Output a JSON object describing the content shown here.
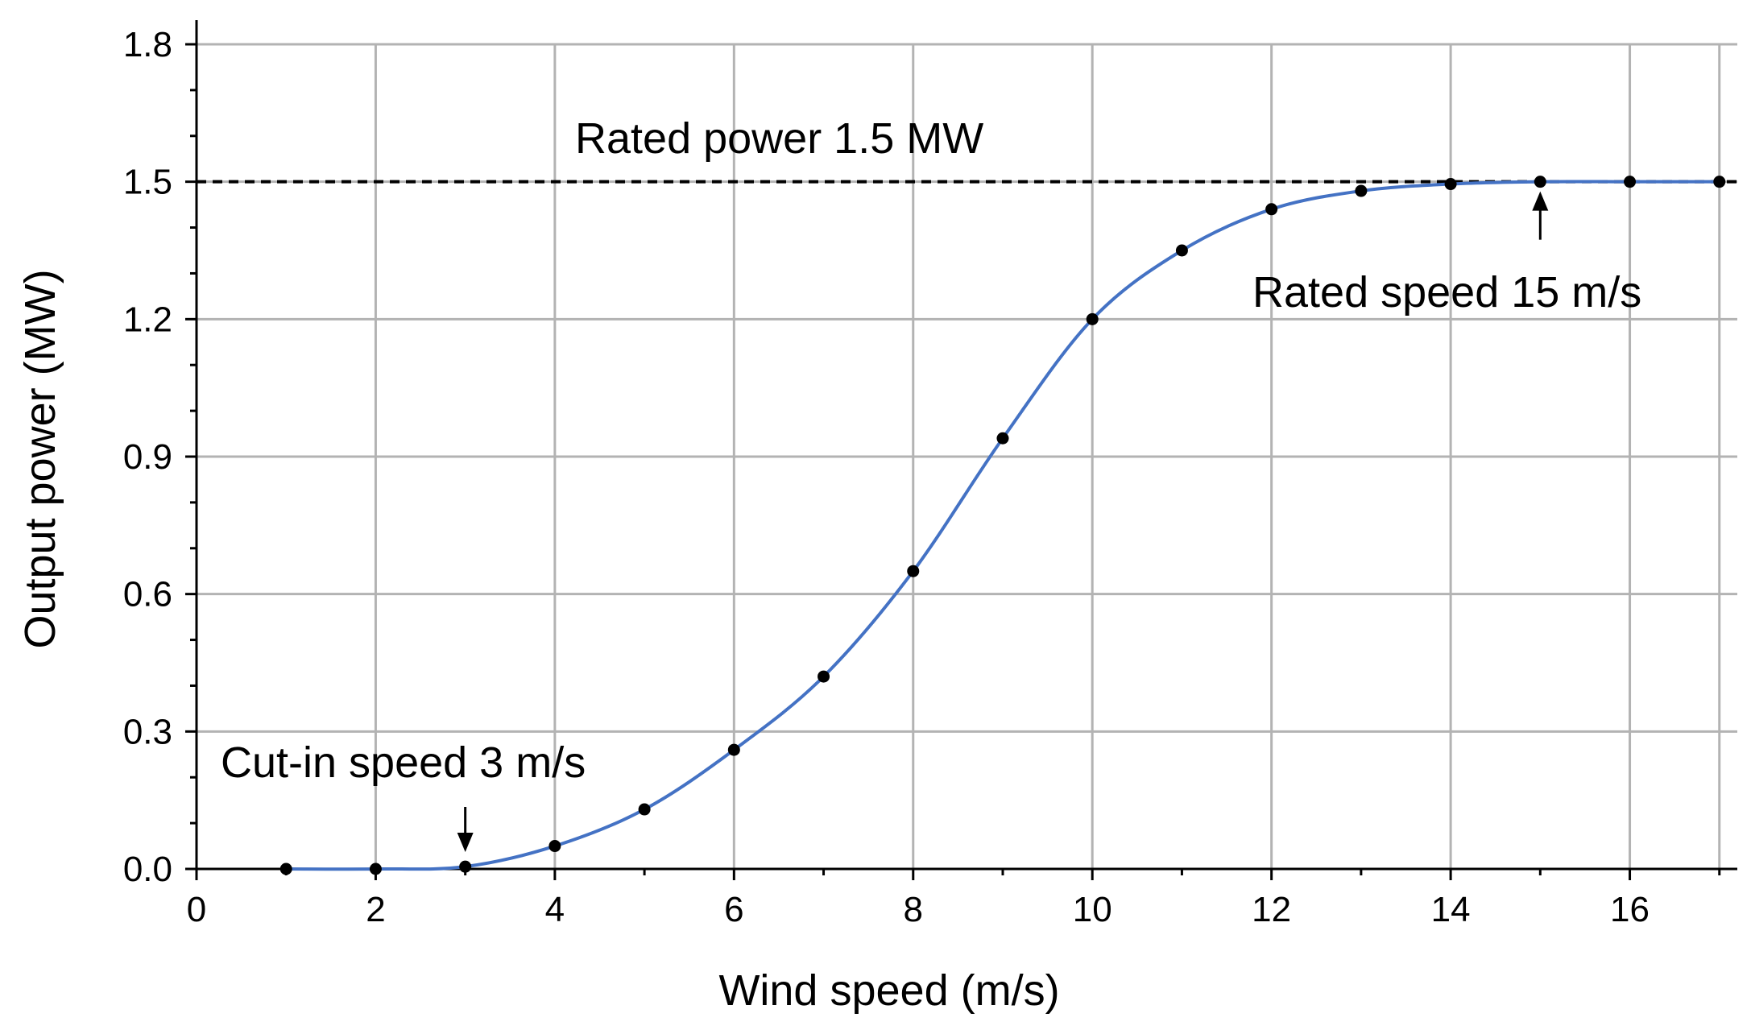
{
  "chart_data": {
    "type": "line",
    "title": "",
    "xlabel": "Wind speed (m/s)",
    "ylabel": "Output power (MW)",
    "xlim": [
      0,
      17.2
    ],
    "ylim": [
      0,
      1.8
    ],
    "x_ticks": [
      0,
      2,
      4,
      6,
      8,
      10,
      12,
      14,
      16
    ],
    "x_tick_labels": [
      "0",
      "2",
      "4",
      "6",
      "8",
      "10",
      "12",
      "14",
      "16"
    ],
    "y_ticks": [
      0,
      0.3,
      0.6,
      0.9,
      1.2,
      1.5,
      1.8
    ],
    "y_tick_labels": [
      "0.0",
      "0.3",
      "0.6",
      "0.9",
      "1.2",
      "1.5",
      "1.8"
    ],
    "grid": true,
    "series": [
      {
        "x": [
          1,
          2,
          3,
          4,
          5,
          6,
          7,
          8,
          9,
          10,
          11,
          12,
          13,
          14,
          15,
          16,
          17
        ],
        "values": [
          0,
          0,
          0.005,
          0.05,
          0.13,
          0.26,
          0.42,
          0.65,
          0.94,
          1.2,
          1.35,
          1.44,
          1.48,
          1.495,
          1.5,
          1.5,
          1.5
        ],
        "color": "#4472c4",
        "marker_color": "#000000"
      }
    ],
    "reference_lines": [
      {
        "axis": "y",
        "value": 1.5,
        "style": "dashed",
        "color": "#000000"
      }
    ],
    "annotations": {
      "rated_power": {
        "text": "Rated power 1.5 MW"
      },
      "rated_speed": {
        "text": "Rated speed 15 m/s",
        "arrow_x": 15,
        "arrow_y": 1.5
      },
      "cut_in": {
        "text": "Cut-in speed 3 m/s",
        "arrow_x": 3,
        "arrow_y": 0
      }
    }
  }
}
